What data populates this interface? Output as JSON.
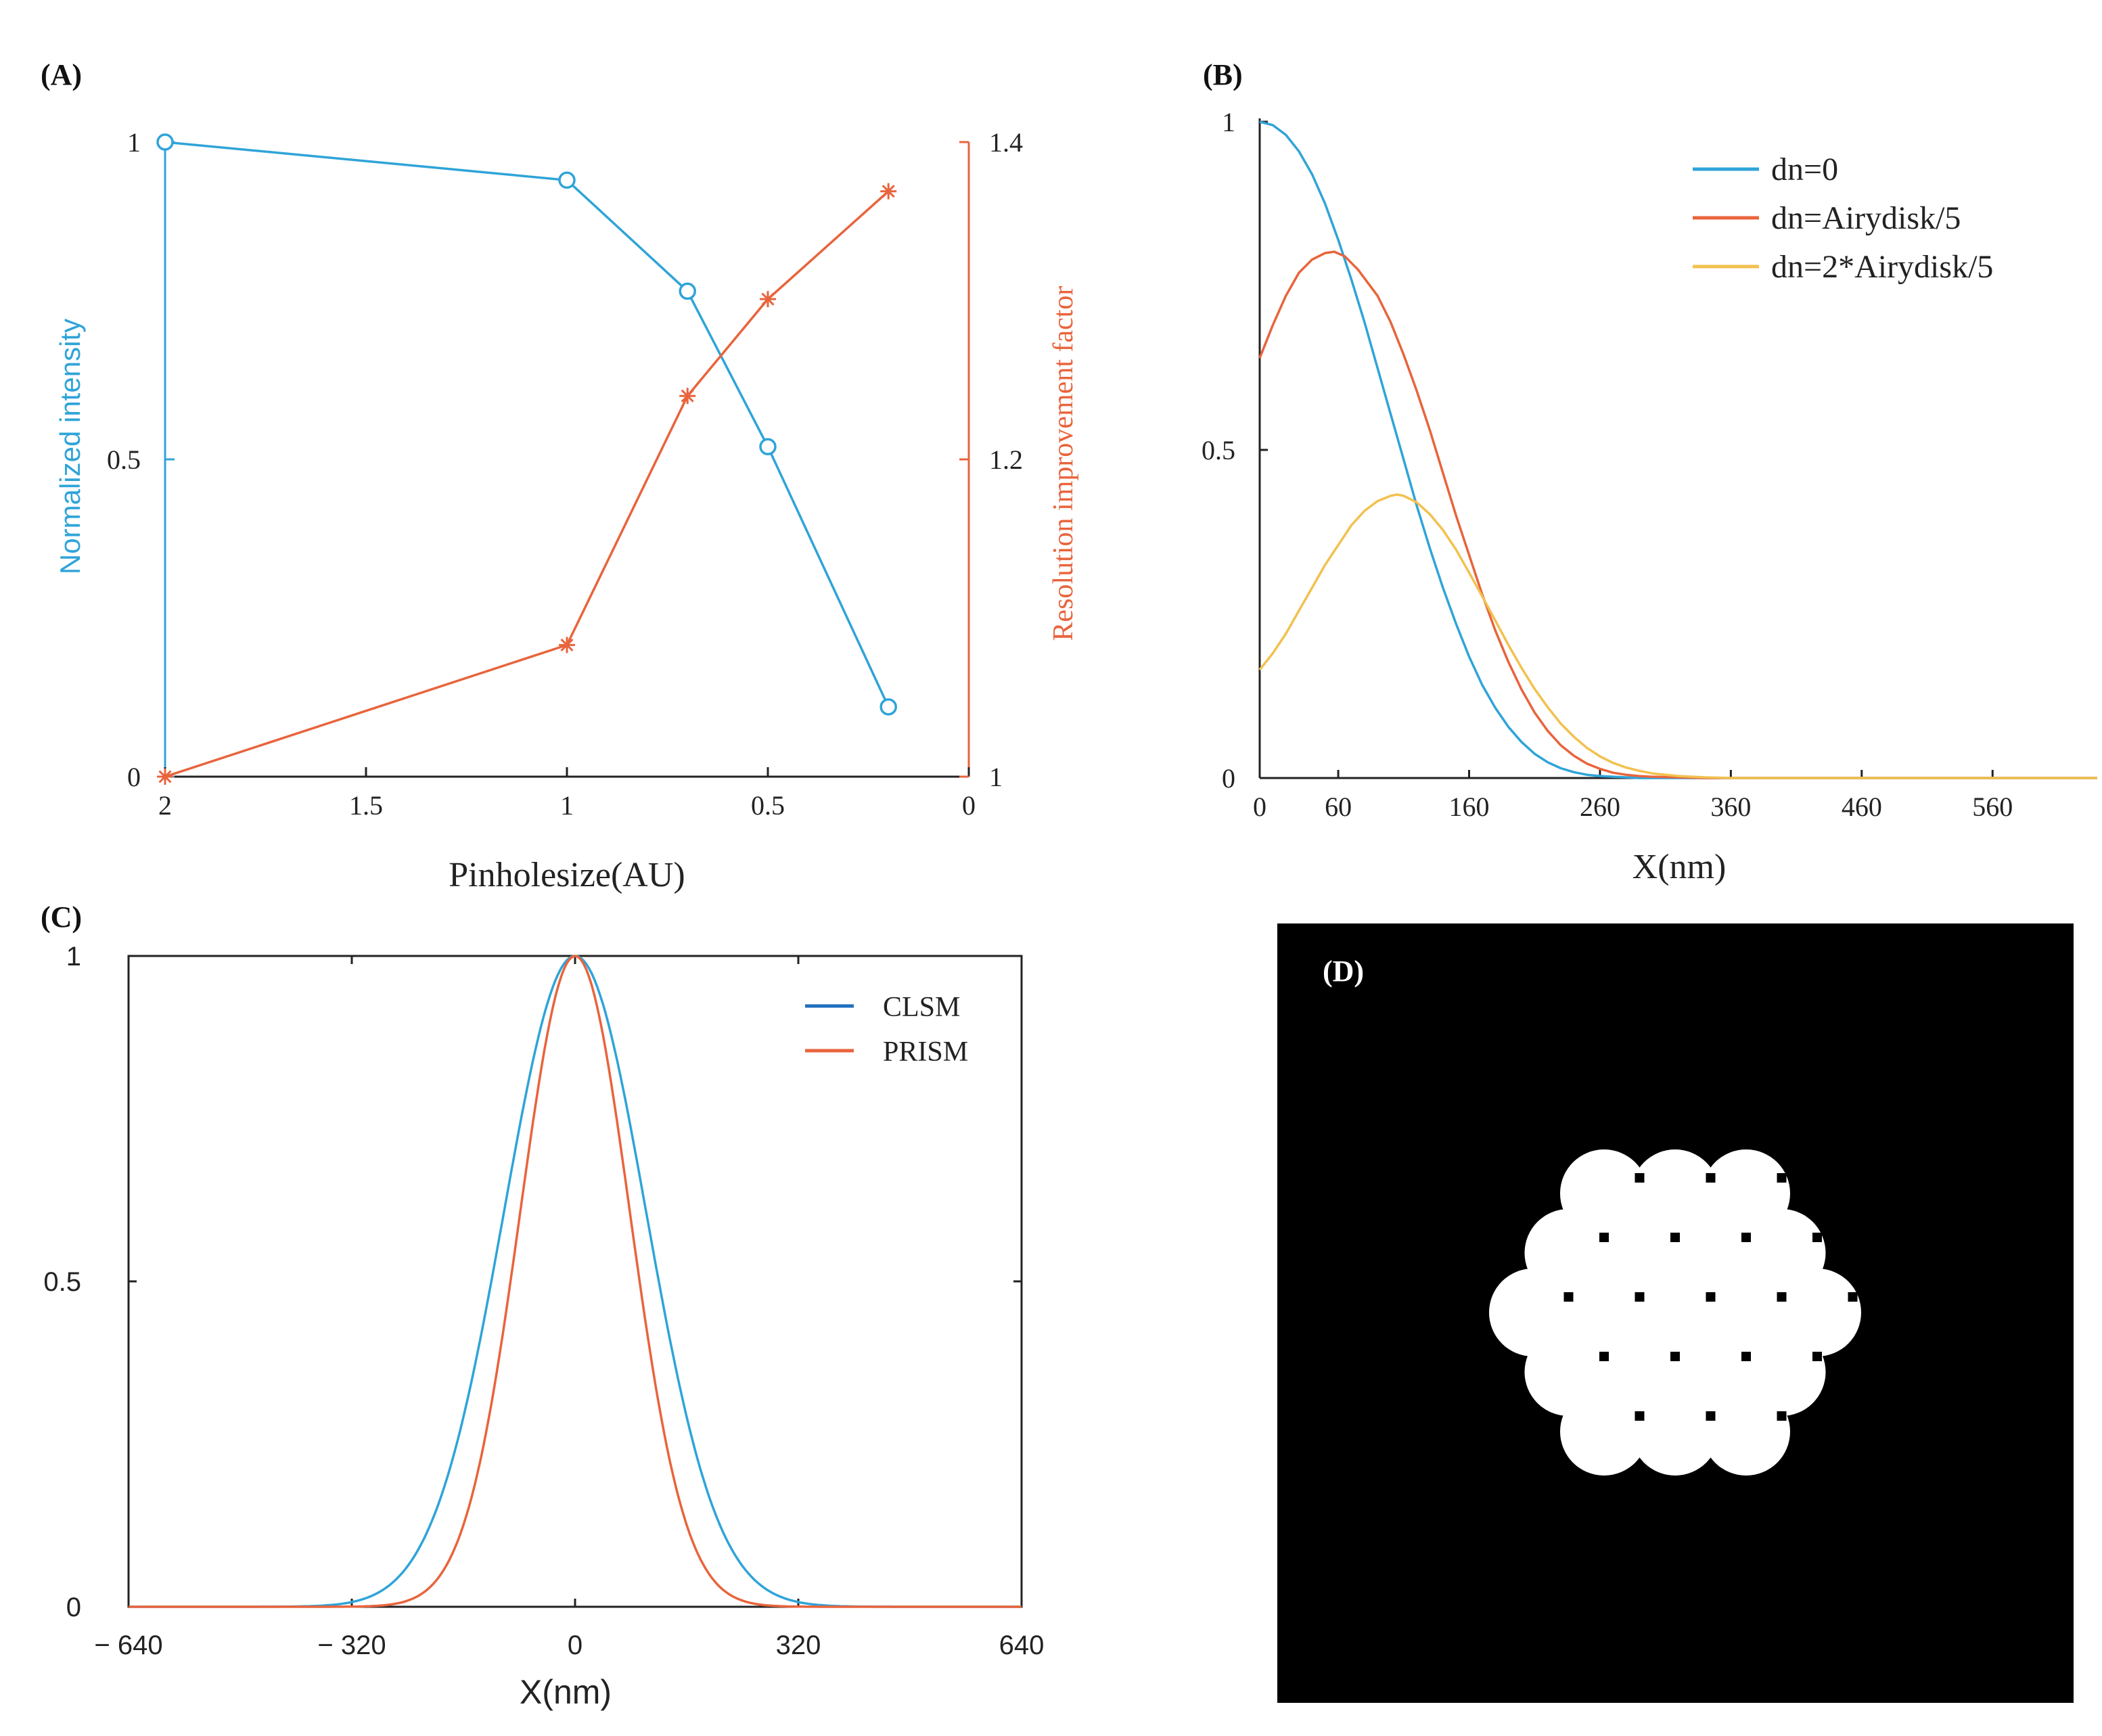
{
  "colors": {
    "blue": "#2fa4d8",
    "orange": "#e8643c",
    "yellow": "#f2c14e",
    "clsm_blue": "#1f6fbf",
    "axis": "#222222",
    "left_axis_a": "#2fa4d8",
    "right_axis_a": "#e8643c"
  },
  "chart_data": [
    {
      "panel_label": "(A)",
      "type": "line",
      "title": "",
      "xlabel": "Pinholesize(AU)",
      "ylabel": "Normalized intensity",
      "ylabel_right": "Resolution improvement factor",
      "xlim": [
        2,
        0
      ],
      "ylim": [
        0,
        1
      ],
      "ylim_right": [
        1,
        1.4
      ],
      "xticks": [
        2,
        1.5,
        1,
        0.5,
        0
      ],
      "xtick_labels": [
        "2",
        "1.5",
        "1",
        "0.5",
        "0"
      ],
      "yticks": [
        0,
        0.5,
        1
      ],
      "ytick_labels": [
        "0",
        "0.5",
        "1"
      ],
      "yticks_right": [
        1,
        1.2,
        1.4
      ],
      "ytick_labels_right": [
        "1",
        "1.2",
        "1.4"
      ],
      "series": [
        {
          "name": "Normalized intensity",
          "axis": "left",
          "marker": "circle",
          "x": [
            2,
            1,
            0.7,
            0.5,
            0.2
          ],
          "y": [
            1.0,
            0.94,
            0.765,
            0.52,
            0.11
          ]
        },
        {
          "name": "Resolution improvement factor",
          "axis": "right",
          "marker": "star",
          "x": [
            2,
            1,
            0.7,
            0.5,
            0.2
          ],
          "y": [
            1.0,
            1.083,
            1.24,
            1.301,
            1.369
          ]
        }
      ]
    },
    {
      "panel_label": "(B)",
      "type": "line",
      "title": "",
      "xlabel": "X(nm)",
      "ylabel": "",
      "xlim": [
        0,
        640
      ],
      "ylim": [
        0,
        1
      ],
      "xticks": [
        0,
        60,
        160,
        260,
        360,
        460,
        560
      ],
      "xtick_labels": [
        "0",
        "60",
        "160",
        "260",
        "360",
        "460",
        "560"
      ],
      "yticks": [
        0,
        0.5,
        1
      ],
      "ytick_labels": [
        "0",
        "0.5",
        "1"
      ],
      "legend": [
        "dn=0",
        "dn=Airydisk/5",
        "dn=2*Airydisk/5"
      ],
      "legend_position": "top-right",
      "series": [
        {
          "name": "dn=0",
          "x": [
            0,
            10,
            20,
            30,
            40,
            50,
            60,
            70,
            80,
            90,
            100,
            110,
            120,
            130,
            140,
            150,
            160,
            170,
            180,
            190,
            200,
            210,
            220,
            230,
            240,
            250,
            260,
            270,
            280,
            290,
            300,
            320,
            340,
            360,
            400,
            460,
            560,
            640
          ],
          "y": [
            1.0,
            0.995,
            0.98,
            0.955,
            0.92,
            0.875,
            0.82,
            0.76,
            0.695,
            0.625,
            0.555,
            0.485,
            0.415,
            0.35,
            0.29,
            0.235,
            0.185,
            0.142,
            0.107,
            0.078,
            0.055,
            0.037,
            0.024,
            0.015,
            0.009,
            0.005,
            0.003,
            0.002,
            0.001,
            0.0,
            0.0,
            0.0,
            0.0,
            0.0,
            0.0,
            0.0,
            0.0,
            0.0
          ]
        },
        {
          "name": "dn=Airydisk/5",
          "x": [
            0,
            10,
            20,
            30,
            40,
            50,
            57,
            65,
            75,
            90,
            100,
            110,
            120,
            130,
            140,
            150,
            160,
            170,
            180,
            190,
            200,
            210,
            220,
            230,
            240,
            250,
            260,
            270,
            280,
            290,
            300,
            320,
            340,
            360,
            400,
            460,
            560,
            640
          ],
          "y": [
            0.64,
            0.69,
            0.735,
            0.77,
            0.79,
            0.8,
            0.802,
            0.795,
            0.775,
            0.735,
            0.695,
            0.645,
            0.59,
            0.53,
            0.465,
            0.4,
            0.34,
            0.28,
            0.225,
            0.177,
            0.135,
            0.1,
            0.072,
            0.05,
            0.034,
            0.022,
            0.014,
            0.008,
            0.005,
            0.003,
            0.002,
            0.001,
            0.0,
            0.0,
            0.0,
            0.0,
            0.0,
            0.0
          ]
        },
        {
          "name": "dn=2*Airydisk/5",
          "x": [
            0,
            10,
            20,
            30,
            40,
            50,
            60,
            70,
            80,
            90,
            100,
            105,
            110,
            120,
            130,
            140,
            150,
            160,
            170,
            180,
            190,
            200,
            210,
            220,
            230,
            240,
            250,
            260,
            270,
            280,
            290,
            300,
            320,
            340,
            360,
            380,
            400,
            460,
            560,
            640
          ],
          "y": [
            0.165,
            0.19,
            0.22,
            0.255,
            0.29,
            0.325,
            0.355,
            0.385,
            0.407,
            0.422,
            0.43,
            0.432,
            0.43,
            0.42,
            0.402,
            0.378,
            0.348,
            0.313,
            0.277,
            0.24,
            0.203,
            0.168,
            0.136,
            0.108,
            0.083,
            0.063,
            0.046,
            0.033,
            0.023,
            0.016,
            0.011,
            0.007,
            0.003,
            0.001,
            0.0,
            0.0,
            0.0,
            0.0,
            0.0,
            0.0
          ]
        }
      ]
    },
    {
      "panel_label": "(C)",
      "type": "line",
      "title": "",
      "xlabel": "X(nm)",
      "ylabel": "",
      "xlim": [
        -640,
        640
      ],
      "ylim": [
        0,
        1
      ],
      "xticks": [
        -640,
        -320,
        0,
        320,
        640
      ],
      "xtick_labels": [
        "− 640",
        "− 320",
        "0",
        "320",
        "640"
      ],
      "yticks": [
        0,
        0.5,
        1
      ],
      "ytick_labels": [
        "0",
        "0.5",
        "1"
      ],
      "legend": [
        "CLSM",
        "PRISM"
      ],
      "legend_position": "top-right",
      "series": [
        {
          "name": "CLSM",
          "model": "gaussian",
          "amplitude": 1,
          "center": 0,
          "fwhm": 240
        },
        {
          "name": "PRISM",
          "model": "gaussian",
          "amplitude": 1,
          "center": 0,
          "fwhm": 185
        }
      ]
    }
  ],
  "panel_d": {
    "panel_label": "(D)",
    "description_label": ""
  }
}
